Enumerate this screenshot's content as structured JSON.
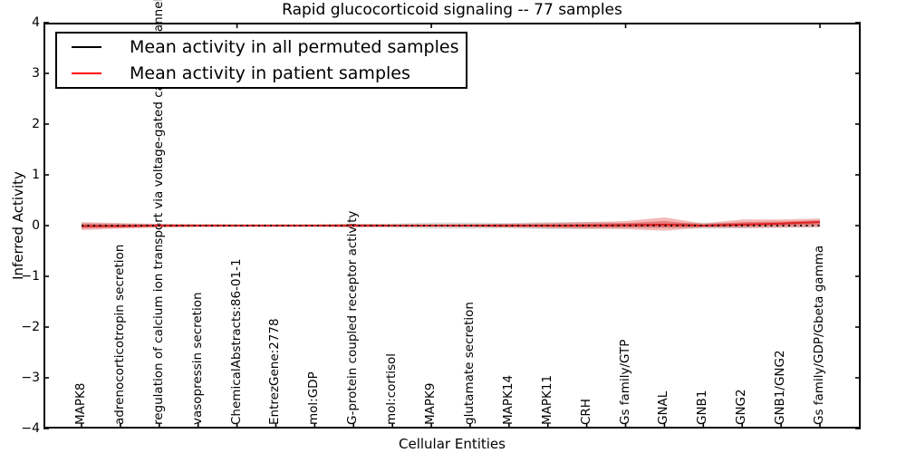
{
  "figure": {
    "kind": "matplotlib-plot"
  },
  "chart_data": {
    "type": "line",
    "title": "Rapid glucocorticoid signaling -- 77 samples",
    "xlabel": "Cellular Entities",
    "ylabel": "Inferred Activity",
    "ylim": [
      -4,
      4
    ],
    "yticks": [
      "−4",
      "−3",
      "−2",
      "−1",
      "0",
      "1",
      "2",
      "3",
      "4"
    ],
    "grid": false,
    "legend_position": "upper left",
    "categories": [
      "MAPK8",
      "adrenocorticotropin secretion",
      "regulation of calcium ion transport via voltage-gated calcium channel",
      "vasopressin secretion",
      "ChemicalAbstracts:86-01-1",
      "EntrezGene:2778",
      "mol:GDP",
      "G-protein coupled receptor activity",
      "mol:cortisol",
      "MAPK9",
      "glutamate secretion",
      "MAPK14",
      "MAPK11",
      "CRH",
      "Gs family/GTP",
      "GNAL",
      "GNB1",
      "GNG2",
      "GNB1/GNG2",
      "Gs family/GDP/Gbeta gamma"
    ],
    "series": [
      {
        "name": "Mean activity in all permuted samples",
        "color": "#000000",
        "style": "dotted",
        "values": [
          0,
          0,
          0,
          0,
          0,
          0,
          0,
          0,
          0,
          0,
          0,
          0,
          0,
          0,
          0,
          0,
          0,
          0,
          0,
          0
        ],
        "band_upper": [
          0.05,
          0.04,
          0.03,
          0.025,
          0.025,
          0.025,
          0.025,
          0.03,
          0.04,
          0.06,
          0.06,
          0.05,
          0.07,
          0.07,
          0.05,
          0.04,
          0.06,
          0.05,
          0.04,
          0.03
        ],
        "band_lower": [
          -0.05,
          -0.04,
          -0.03,
          -0.025,
          -0.025,
          -0.025,
          -0.025,
          -0.03,
          -0.04,
          -0.06,
          -0.06,
          -0.05,
          -0.07,
          -0.07,
          -0.05,
          -0.04,
          -0.06,
          -0.05,
          -0.04,
          -0.03
        ],
        "band_color": "#bdbdbd"
      },
      {
        "name": "Mean activity in patient samples",
        "color": "#dd2222",
        "style": "solid",
        "values": [
          -0.01,
          -0.01,
          0,
          0,
          0,
          0,
          0,
          0,
          0,
          0,
          0,
          0,
          0,
          0,
          0.01,
          0.02,
          0,
          0.02,
          0.04,
          0.07
        ],
        "band_upper": [
          0.07,
          0.05,
          0.035,
          0.03,
          0.025,
          0.025,
          0.025,
          0.035,
          0.025,
          0.025,
          0.03,
          0.04,
          0.05,
          0.07,
          0.09,
          0.16,
          0.04,
          0.12,
          0.12,
          0.14
        ],
        "band_lower": [
          -0.09,
          -0.06,
          -0.04,
          -0.03,
          -0.025,
          -0.025,
          -0.025,
          -0.035,
          -0.025,
          -0.025,
          -0.03,
          -0.04,
          -0.05,
          -0.06,
          -0.07,
          -0.1,
          -0.04,
          -0.05,
          -0.04,
          -0.03
        ],
        "band_color": "#dd3333"
      }
    ],
    "top_axis_tick_indices": [
      4,
      9,
      14,
      19
    ]
  },
  "legend": {
    "entries": [
      {
        "label": "Mean activity in all permuted samples",
        "color": "#000000"
      },
      {
        "label": "Mean activity in patient samples",
        "color": "#ff0000"
      }
    ]
  }
}
